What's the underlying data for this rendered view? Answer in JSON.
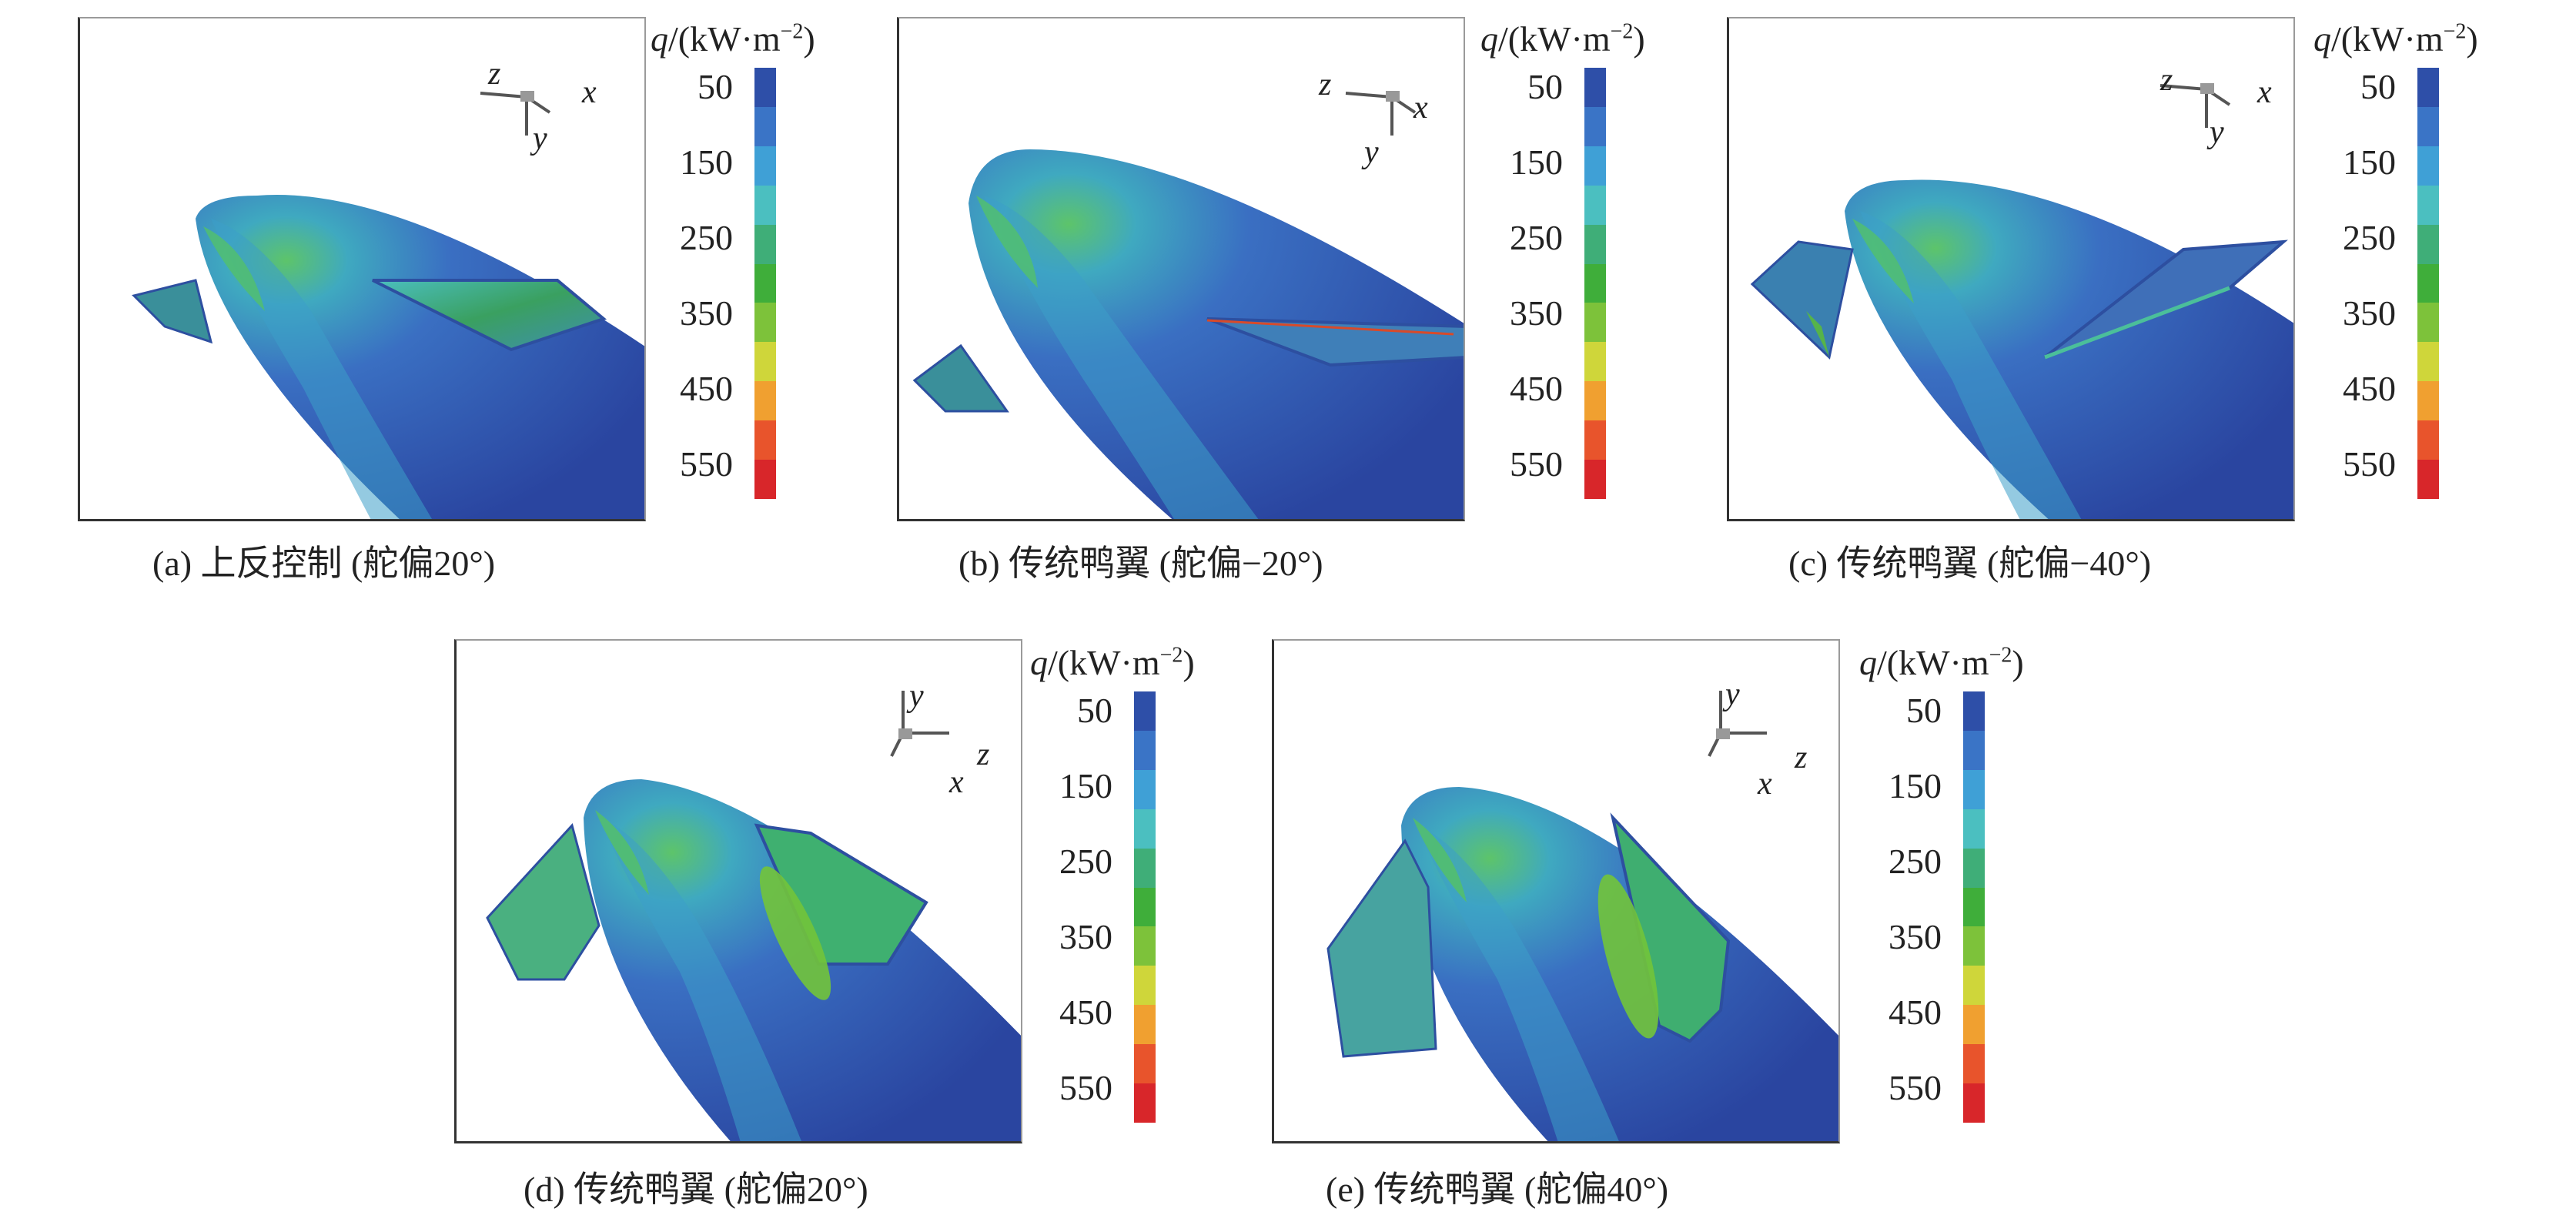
{
  "colorbar": {
    "title_q": "q",
    "title_unit": "/(kW·m",
    "title_exp": "−2",
    "title_close": ")",
    "ticks": [
      "50",
      "150",
      "250",
      "350",
      "450",
      "550"
    ],
    "colors": [
      "#2e4fa8",
      "#3a74c6",
      "#3fa0d6",
      "#4bbfc0",
      "#3fae78",
      "#3fae3a",
      "#7dc23a",
      "#cfd63a",
      "#f0a030",
      "#e8542c",
      "#d8262a"
    ]
  },
  "axis_labels": {
    "x": "x",
    "y": "y",
    "z": "z"
  },
  "panels": [
    {
      "caption": "(a) 上反控制 (舵偏20°)"
    },
    {
      "caption": "(b) 传统鸭翼 (舵偏−20°)"
    },
    {
      "caption": "(c) 传统鸭翼 (舵偏−40°)"
    },
    {
      "caption": "(d) 传统鸭翼 (舵偏20°)"
    },
    {
      "caption": "(e) 传统鸭翼 (舵偏40°)"
    }
  ]
}
